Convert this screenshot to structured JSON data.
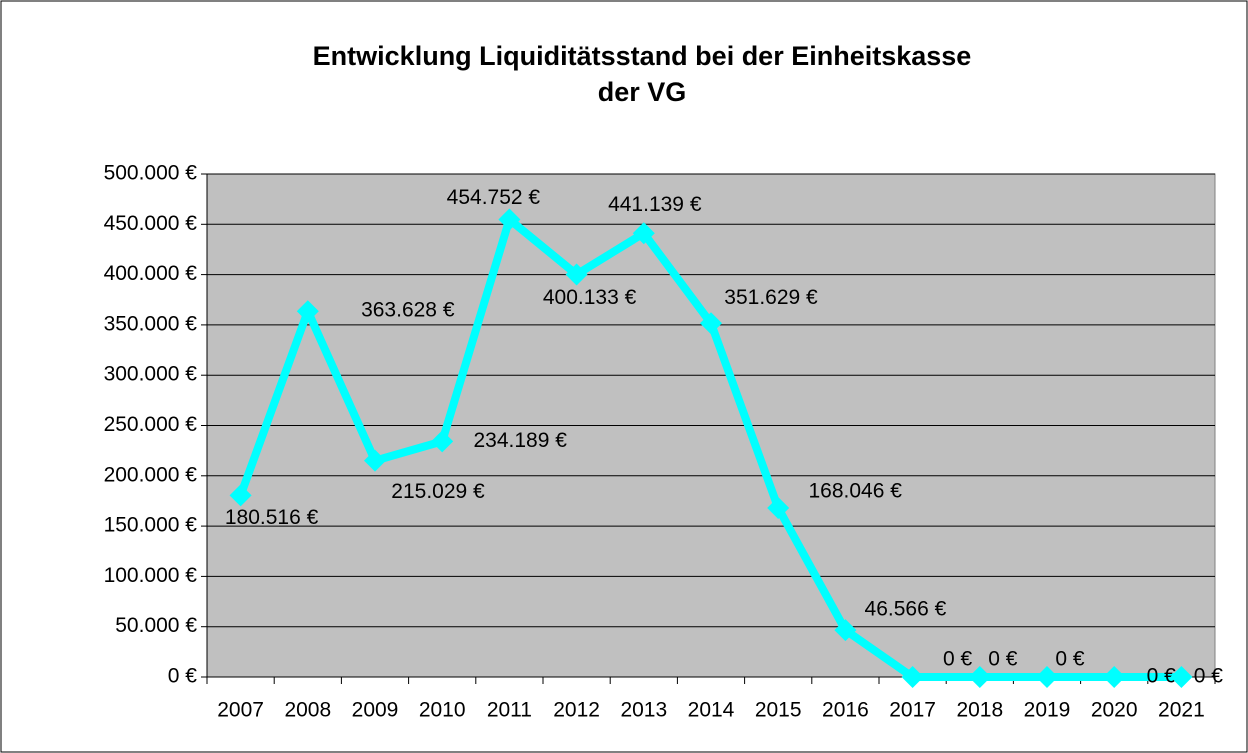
{
  "chart_data": {
    "type": "line",
    "title": [
      "Entwicklung Liquiditätsstand bei der Einheitskasse",
      "der VG"
    ],
    "categories": [
      "2007",
      "2008",
      "2009",
      "2010",
      "2011",
      "2012",
      "2013",
      "2014",
      "2015",
      "2016",
      "2017",
      "2018",
      "2019",
      "2020",
      "2021"
    ],
    "series": [
      {
        "color": "#00ffff",
        "values": [
          180516,
          363628,
          215029,
          234189,
          454752,
          400133,
          441139,
          351629,
          168046,
          46566,
          0,
          0,
          0,
          0,
          0
        ],
        "value_labels": [
          "180.516 €",
          "363.628 €",
          "215.029 €",
          "234.189 €",
          "454.752 €",
          "400.133 €",
          "441.139 €",
          "351.629 €",
          "168.046 €",
          "46.566 €",
          "0 €",
          "0 €",
          "0 €",
          "0 €",
          "0 €"
        ]
      }
    ],
    "ylim": [
      0,
      500000
    ],
    "yticks": [
      {
        "value": 0,
        "label": "0 €"
      },
      {
        "value": 50000,
        "label": "50.000 €"
      },
      {
        "value": 100000,
        "label": "100.000 €"
      },
      {
        "value": 150000,
        "label": "150.000 €"
      },
      {
        "value": 200000,
        "label": "200.000 €"
      },
      {
        "value": 250000,
        "label": "250.000 €"
      },
      {
        "value": 300000,
        "label": "300.000 €"
      },
      {
        "value": 350000,
        "label": "350.000 €"
      },
      {
        "value": 400000,
        "label": "400.000 €"
      },
      {
        "value": 450000,
        "label": "450.000 €"
      },
      {
        "value": 500000,
        "label": "500.000 €"
      }
    ],
    "grid": true
  }
}
